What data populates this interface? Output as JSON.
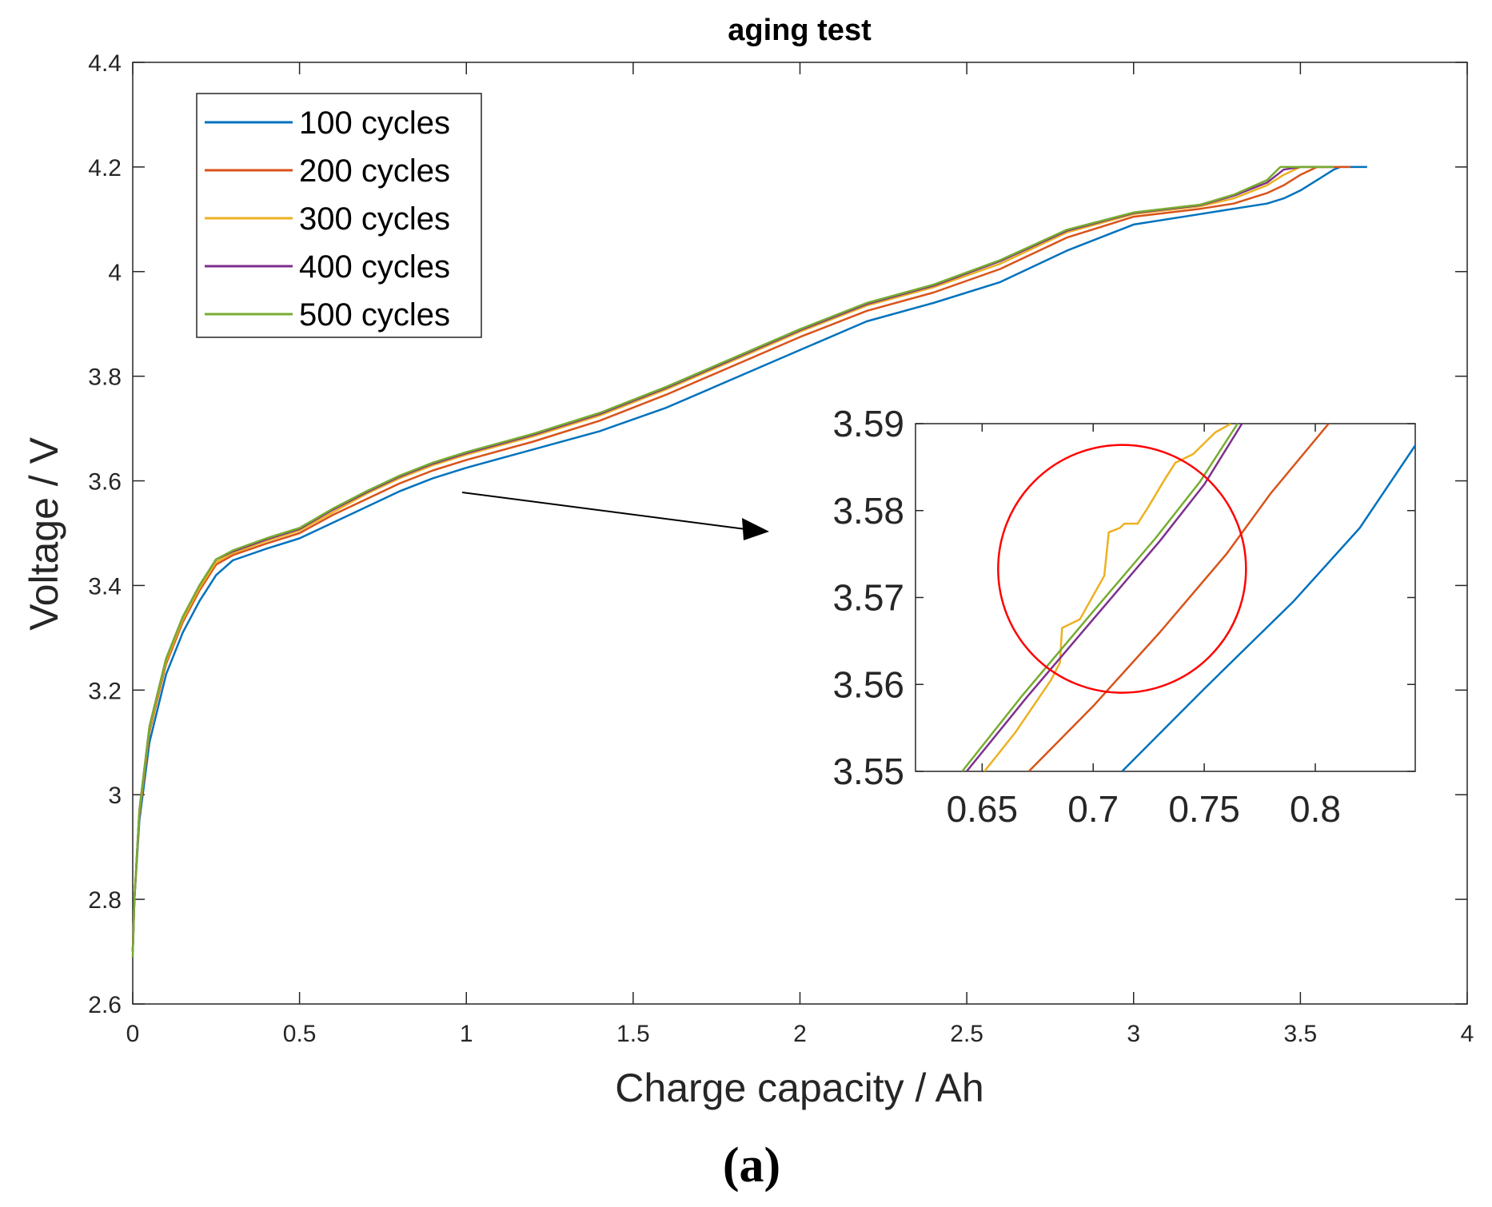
{
  "chart_data": {
    "type": "line",
    "title": "aging test",
    "xlabel": "Charge capacity / Ah",
    "ylabel": "Voltage / V",
    "panel_label": "(a)",
    "xlim": [
      0,
      4
    ],
    "ylim": [
      2.6,
      4.4
    ],
    "xticks": [
      "0",
      "0.5",
      "1",
      "1.5",
      "2",
      "2.5",
      "3",
      "3.5",
      "4"
    ],
    "yticks": [
      "2.6",
      "2.8",
      "3",
      "3.2",
      "3.4",
      "3.6",
      "3.8",
      "4",
      "4.2",
      "4.4"
    ],
    "legend_position": "top-left",
    "grid": false,
    "series": [
      {
        "name": "100 cycles",
        "color": "#0072BD",
        "x": [
          0,
          0.005,
          0.02,
          0.05,
          0.1,
          0.15,
          0.2,
          0.25,
          0.3,
          0.4,
          0.5,
          0.6,
          0.7,
          0.8,
          0.9,
          1.0,
          1.2,
          1.4,
          1.6,
          1.8,
          2.0,
          2.2,
          2.4,
          2.6,
          2.8,
          3.0,
          3.2,
          3.3,
          3.4,
          3.45,
          3.5,
          3.55,
          3.6,
          3.62,
          3.65,
          3.7
        ],
        "y": [
          2.7,
          2.8,
          2.95,
          3.1,
          3.23,
          3.31,
          3.37,
          3.42,
          3.448,
          3.47,
          3.49,
          3.52,
          3.55,
          3.58,
          3.605,
          3.625,
          3.66,
          3.695,
          3.74,
          3.795,
          3.85,
          3.905,
          3.94,
          3.98,
          4.04,
          4.09,
          4.11,
          4.12,
          4.13,
          4.14,
          4.155,
          4.175,
          4.195,
          4.2,
          4.2,
          4.2
        ]
      },
      {
        "name": "200 cycles",
        "color": "#D95319",
        "x": [
          0,
          0.005,
          0.02,
          0.05,
          0.1,
          0.15,
          0.2,
          0.25,
          0.3,
          0.4,
          0.5,
          0.6,
          0.7,
          0.8,
          0.9,
          1.0,
          1.2,
          1.4,
          1.6,
          1.8,
          2.0,
          2.2,
          2.4,
          2.6,
          2.8,
          3.0,
          3.2,
          3.3,
          3.4,
          3.45,
          3.5,
          3.55,
          3.6,
          3.65
        ],
        "y": [
          2.7,
          2.8,
          2.96,
          3.12,
          3.25,
          3.33,
          3.39,
          3.44,
          3.458,
          3.48,
          3.5,
          3.535,
          3.565,
          3.595,
          3.62,
          3.64,
          3.675,
          3.715,
          3.765,
          3.82,
          3.875,
          3.925,
          3.96,
          4.005,
          4.065,
          4.105,
          4.12,
          4.13,
          4.15,
          4.165,
          4.185,
          4.2,
          4.2,
          4.2
        ]
      },
      {
        "name": "300 cycles",
        "color": "#EDB120",
        "x": [
          0,
          0.005,
          0.02,
          0.05,
          0.1,
          0.15,
          0.2,
          0.25,
          0.3,
          0.4,
          0.5,
          0.6,
          0.7,
          0.8,
          0.9,
          1.0,
          1.2,
          1.4,
          1.6,
          1.8,
          2.0,
          2.2,
          2.4,
          2.6,
          2.8,
          3.0,
          3.2,
          3.3,
          3.4,
          3.45,
          3.5,
          3.55,
          3.6
        ],
        "y": [
          2.7,
          2.8,
          2.965,
          3.125,
          3.255,
          3.335,
          3.395,
          3.445,
          3.462,
          3.485,
          3.505,
          3.54,
          3.575,
          3.605,
          3.63,
          3.65,
          3.685,
          3.725,
          3.775,
          3.83,
          3.885,
          3.935,
          3.97,
          4.015,
          4.075,
          4.11,
          4.125,
          4.14,
          4.165,
          4.185,
          4.2,
          4.2,
          4.2
        ]
      },
      {
        "name": "400 cycles",
        "color": "#7E2F8E",
        "x": [
          0,
          0.005,
          0.02,
          0.05,
          0.1,
          0.15,
          0.2,
          0.25,
          0.3,
          0.4,
          0.5,
          0.6,
          0.7,
          0.8,
          0.9,
          1.0,
          1.2,
          1.4,
          1.6,
          1.8,
          2.0,
          2.2,
          2.4,
          2.6,
          2.8,
          3.0,
          3.2,
          3.3,
          3.4,
          3.45,
          3.5,
          3.55,
          3.6
        ],
        "y": [
          2.7,
          2.8,
          2.97,
          3.13,
          3.26,
          3.34,
          3.4,
          3.45,
          3.465,
          3.488,
          3.508,
          3.545,
          3.578,
          3.608,
          3.633,
          3.653,
          3.688,
          3.728,
          3.778,
          3.833,
          3.888,
          3.938,
          3.973,
          4.02,
          4.078,
          4.112,
          4.127,
          4.145,
          4.17,
          4.195,
          4.2,
          4.2,
          4.2
        ]
      },
      {
        "name": "500 cycles",
        "color": "#77AC30",
        "x": [
          0,
          0.005,
          0.02,
          0.05,
          0.1,
          0.15,
          0.2,
          0.25,
          0.3,
          0.4,
          0.5,
          0.6,
          0.7,
          0.8,
          0.9,
          1.0,
          1.2,
          1.4,
          1.6,
          1.8,
          2.0,
          2.2,
          2.4,
          2.6,
          2.8,
          3.0,
          3.2,
          3.3,
          3.4,
          3.44,
          3.5,
          3.55,
          3.6
        ],
        "y": [
          2.69,
          2.8,
          2.97,
          3.13,
          3.26,
          3.34,
          3.4,
          3.45,
          3.467,
          3.49,
          3.51,
          3.547,
          3.58,
          3.61,
          3.635,
          3.655,
          3.69,
          3.73,
          3.78,
          3.835,
          3.89,
          3.94,
          3.975,
          4.022,
          4.08,
          4.113,
          4.128,
          4.147,
          4.175,
          4.2,
          4.2,
          4.2,
          4.2
        ]
      }
    ],
    "inset": {
      "xlim": [
        0.62,
        0.845
      ],
      "ylim": [
        3.55,
        3.59
      ],
      "xticks": [
        "0.65",
        "0.7",
        "0.75",
        "0.8"
      ],
      "yticks": [
        "3.55",
        "3.56",
        "3.57",
        "3.58",
        "3.59"
      ],
      "highlight_circle": {
        "cx": 0.713,
        "cy": 3.5733,
        "color": "#FF0000"
      },
      "series": [
        {
          "name": "100 cycles",
          "color": "#0072BD",
          "x": [
            0.713,
            0.75,
            0.79,
            0.82,
            0.845
          ],
          "y": [
            3.55,
            3.5595,
            3.5695,
            3.578,
            3.5875
          ]
        },
        {
          "name": "200 cycles",
          "color": "#D95319",
          "x": [
            0.671,
            0.7,
            0.73,
            0.76,
            0.78,
            0.806
          ],
          "y": [
            3.55,
            3.5575,
            3.566,
            3.575,
            3.582,
            3.59
          ]
        },
        {
          "name": "300 cycles",
          "color": "#EDB120",
          "x": [
            0.651,
            0.665,
            0.681,
            0.685,
            0.686,
            0.694,
            0.705,
            0.707,
            0.712,
            0.714,
            0.72,
            0.725,
            0.732,
            0.737,
            0.745,
            0.755,
            0.762
          ],
          "y": [
            3.55,
            3.5545,
            3.5605,
            3.5625,
            3.5665,
            3.5675,
            3.5725,
            3.5775,
            3.578,
            3.5785,
            3.5785,
            3.5805,
            3.5835,
            3.5855,
            3.5865,
            3.589,
            3.59
          ]
        },
        {
          "name": "400 cycles",
          "color": "#7E2F8E",
          "x": [
            0.643,
            0.67,
            0.7,
            0.73,
            0.75,
            0.767
          ],
          "y": [
            3.55,
            3.5585,
            3.5675,
            3.5765,
            3.583,
            3.59
          ]
        },
        {
          "name": "500 cycles",
          "color": "#77AC30",
          "x": [
            0.641,
            0.668,
            0.698,
            0.728,
            0.748,
            0.765
          ],
          "y": [
            3.55,
            3.5587,
            3.5678,
            3.5768,
            3.5833,
            3.59
          ]
        }
      ]
    }
  }
}
